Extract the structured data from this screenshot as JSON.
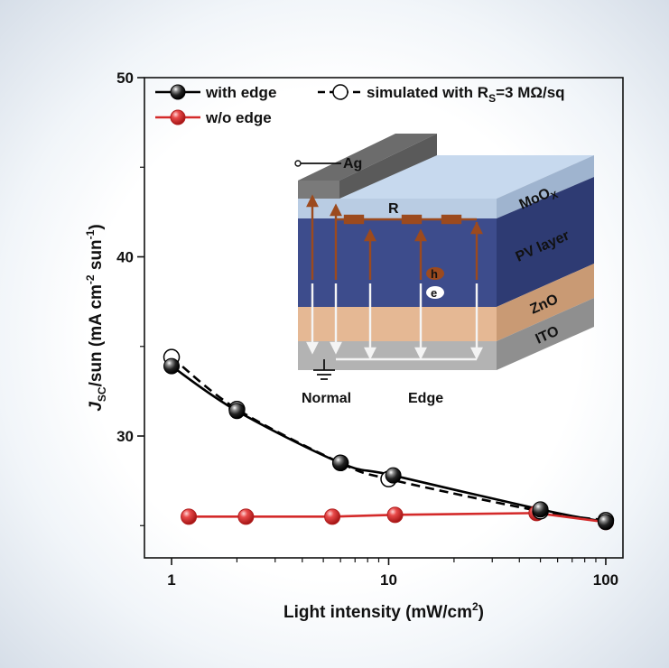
{
  "chart_data": {
    "type": "line",
    "x_scale": "log",
    "xlim": [
      0.75,
      120
    ],
    "ylim": [
      23.2,
      50
    ],
    "x_ticks": [
      "1",
      "10",
      "100"
    ],
    "y_ticks": [
      "30",
      "40",
      "50"
    ],
    "x_tick_values": [
      1,
      10,
      100
    ],
    "y_tick_values": [
      30,
      40,
      50
    ],
    "xlabel": "Light intensity (mW/cm",
    "xlabel_sup": "2",
    "xlabel_tail": ")",
    "ylabel_main": "J",
    "ylabel_sub": "SC",
    "ylabel_rest": "/sun (mA cm",
    "ylabel_sup1": "-2",
    "ylabel_mid": " sun",
    "ylabel_sup2": "-1",
    "ylabel_end": ")",
    "series": [
      {
        "name": "with edge",
        "marker": "black-sphere",
        "color": "#000000",
        "dash": false,
        "x": [
          1,
          2,
          6,
          10.5,
          50,
          100
        ],
        "y": [
          33.9,
          31.4,
          28.5,
          27.8,
          25.9,
          25.2
        ]
      },
      {
        "name": "simulated with R",
        "name_sub": "S",
        "name_tail": "=3 MΩ/sq",
        "marker": "white-circle",
        "color": "#000000",
        "dash": true,
        "x": [
          1,
          2,
          6,
          10,
          50,
          100
        ],
        "y": [
          34.4,
          31.5,
          28.5,
          27.6,
          25.8,
          25.3
        ]
      },
      {
        "name": "w/o edge",
        "marker": "red-sphere",
        "color": "#d42a2a",
        "dash": false,
        "x": [
          1.2,
          2.2,
          5.5,
          10.7,
          48,
          100
        ],
        "y": [
          25.5,
          25.5,
          25.5,
          25.6,
          25.7,
          25.2
        ]
      }
    ],
    "legend_position": "top"
  },
  "inset": {
    "layer_labels": [
      "MoO",
      "PV layer",
      "ZnO",
      "ITO"
    ],
    "moox_sub": "X",
    "electrode_label": "Ag",
    "resistor_label": "R",
    "hole_label": "h",
    "electron_label": "e",
    "bottom_labels": [
      "Normal",
      "Edge"
    ],
    "colors": {
      "moox": "#b9cce3",
      "pv": "#3d4c8c",
      "zno": "#e5b894",
      "ito": "#b3b3b3",
      "ag": "#707070",
      "path": "#9c4a1e"
    }
  }
}
